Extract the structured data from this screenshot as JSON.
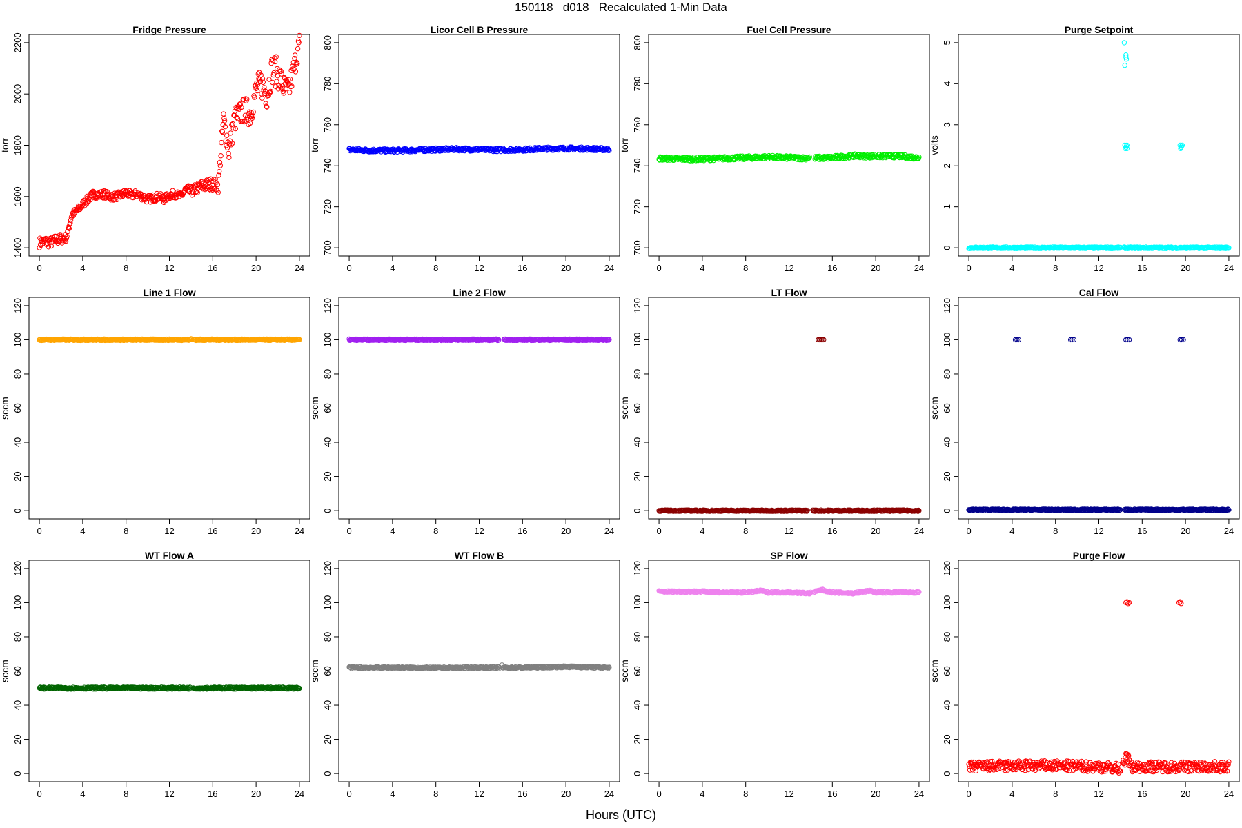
{
  "page": {
    "title": "150118   d018   Recalculated 1-Min Data",
    "xlabel": "Hours (UTC)"
  },
  "chart_data": [
    {
      "type": "scatter",
      "title": "Fridge Pressure",
      "ylabel": "torr",
      "xlim": [
        0,
        24
      ],
      "ylim": [
        1400,
        2200
      ],
      "yticks": [
        1400,
        1600,
        1800,
        2000,
        2200
      ],
      "xticks": [
        0,
        4,
        8,
        12,
        16,
        20,
        24
      ],
      "color": "#ff0000",
      "marker": "open-circle",
      "series": [
        {
          "x": [
            0,
            0.5,
            1,
            1.5,
            2,
            2.5,
            3,
            3.5,
            4,
            4.5,
            5,
            5.5,
            6,
            6.5,
            7,
            7.5,
            8,
            8.5,
            9,
            9.5,
            10,
            10.5,
            11,
            11.5,
            12,
            12.5,
            13,
            13.5,
            14,
            14.5,
            15,
            15.5,
            16,
            16.5,
            17,
            17.5,
            18,
            18.5,
            19,
            19.5,
            20,
            20.5,
            21,
            21.5,
            22,
            22.5,
            23,
            23.5,
            24
          ],
          "y": [
            1420,
            1425,
            1420,
            1430,
            1435,
            1440,
            1530,
            1545,
            1570,
            1590,
            1610,
            1605,
            1610,
            1600,
            1600,
            1605,
            1615,
            1605,
            1610,
            1600,
            1590,
            1595,
            1600,
            1590,
            1605,
            1610,
            1600,
            1625,
            1620,
            1630,
            1640,
            1645,
            1650,
            1640,
            1900,
            1780,
            1900,
            1920,
            1940,
            1920,
            2020,
            2040,
            2000,
            2100,
            2080,
            2030,
            2010,
            2100,
            2200
          ]
        }
      ],
      "scatter_band": [
        20,
        20,
        20,
        20,
        20,
        15,
        15,
        15,
        15,
        15,
        15,
        15,
        15,
        15,
        15,
        15,
        15,
        15,
        15,
        15,
        15,
        15,
        15,
        15,
        15,
        15,
        15,
        20,
        20,
        20,
        25,
        25,
        25,
        25,
        40,
        50,
        50,
        50,
        50,
        50,
        50,
        60,
        60,
        60,
        60,
        50,
        50,
        50,
        40
      ],
      "gap": [
        14.0,
        14.1
      ]
    },
    {
      "type": "scatter",
      "title": "Licor Cell B Pressure",
      "ylabel": "torr",
      "xlim": [
        0,
        24
      ],
      "ylim": [
        700,
        800
      ],
      "yticks": [
        700,
        720,
        740,
        760,
        780,
        800
      ],
      "xticks": [
        0,
        4,
        8,
        12,
        16,
        20,
        24
      ],
      "color": "#0000ff",
      "marker": "open-circle",
      "series": [
        {
          "x": [
            0,
            2,
            4,
            6,
            8,
            10,
            12,
            14,
            16,
            18,
            20,
            22,
            24
          ],
          "y": [
            747.8,
            747.5,
            747.4,
            747.6,
            747.9,
            748.1,
            747.9,
            747.7,
            747.9,
            748.3,
            748.4,
            748.3,
            748.0
          ]
        }
      ],
      "scatter_band": 0.8,
      "gap": [
        14.0,
        14.2
      ],
      "outliers": [
        [
          14.2,
          748.6
        ]
      ]
    },
    {
      "type": "scatter",
      "title": "Fuel Cell Pressure",
      "ylabel": "torr",
      "xlim": [
        0,
        24
      ],
      "ylim": [
        700,
        800
      ],
      "yticks": [
        700,
        720,
        740,
        760,
        780,
        800
      ],
      "xticks": [
        0,
        4,
        8,
        12,
        16,
        20,
        24
      ],
      "color": "#00ee00",
      "marker": "open-circle",
      "series": [
        {
          "x": [
            0,
            2,
            4,
            6,
            8,
            10,
            12,
            13.5,
            15,
            16,
            18,
            20,
            22,
            24
          ],
          "y": [
            743.6,
            743.3,
            743.3,
            743.6,
            743.9,
            744.2,
            743.9,
            743.7,
            743.8,
            744.0,
            744.8,
            744.6,
            744.7,
            743.9
          ]
        }
      ],
      "scatter_band": 0.9,
      "gap": [
        13.9,
        14.4
      ]
    },
    {
      "type": "scatter",
      "title": "Purge Setpoint",
      "ylabel": "volts",
      "xlim": [
        0,
        24
      ],
      "ylim": [
        0,
        5
      ],
      "yticks": [
        0,
        1,
        2,
        3,
        4,
        5
      ],
      "xticks": [
        0,
        4,
        8,
        12,
        16,
        20,
        24
      ],
      "color": "#00ffff",
      "marker": "open-circle",
      "series": [
        {
          "x": [
            0,
            4,
            8,
            12,
            16,
            20,
            24
          ],
          "y": [
            0,
            0,
            0,
            0,
            0,
            0,
            0
          ]
        }
      ],
      "scatter_band": 0.02,
      "gap": [
        14.0,
        14.3
      ],
      "outliers": [
        [
          14.35,
          5.0
        ],
        [
          14.5,
          4.7
        ],
        [
          14.55,
          4.6
        ],
        [
          14.4,
          4.45
        ],
        [
          14.5,
          4.65
        ],
        [
          14.4,
          2.5
        ],
        [
          14.5,
          2.45
        ],
        [
          14.6,
          2.5
        ],
        [
          14.45,
          2.42
        ],
        [
          14.55,
          2.48
        ],
        [
          14.6,
          2.42
        ],
        [
          19.5,
          2.5
        ],
        [
          19.6,
          2.45
        ],
        [
          19.7,
          2.5
        ],
        [
          19.55,
          2.42
        ],
        [
          19.65,
          2.48
        ]
      ]
    },
    {
      "type": "scatter",
      "title": "Line 1 Flow",
      "ylabel": "sccm",
      "xlim": [
        0,
        24
      ],
      "ylim": [
        0,
        120
      ],
      "yticks": [
        0,
        20,
        40,
        60,
        80,
        100,
        120
      ],
      "xticks": [
        0,
        4,
        8,
        12,
        16,
        20,
        24
      ],
      "color": "#ffa500",
      "marker": "open-circle",
      "series": [
        {
          "x": [
            0,
            4,
            8,
            12,
            16,
            20,
            24
          ],
          "y": [
            100,
            100,
            100,
            100,
            100,
            100,
            100
          ]
        }
      ],
      "scatter_band": 0.4,
      "gap": [
        13.9,
        14.2
      ],
      "outliers": [
        [
          14.0,
          100.6
        ]
      ]
    },
    {
      "type": "scatter",
      "title": "Line 2 Flow",
      "ylabel": "sccm",
      "xlim": [
        0,
        24
      ],
      "ylim": [
        0,
        120
      ],
      "yticks": [
        0,
        20,
        40,
        60,
        80,
        100,
        120
      ],
      "xticks": [
        0,
        4,
        8,
        12,
        16,
        20,
        24
      ],
      "color": "#a020f0",
      "marker": "open-circle",
      "series": [
        {
          "x": [
            0,
            4,
            8,
            12,
            16,
            20,
            24
          ],
          "y": [
            100,
            100,
            100,
            100,
            100,
            100,
            100
          ]
        }
      ],
      "scatter_band": 0.4,
      "gap": [
        13.8,
        14.3
      ]
    },
    {
      "type": "scatter",
      "title": "LT Flow",
      "ylabel": "sccm",
      "xlim": [
        0,
        24
      ],
      "ylim": [
        0,
        120
      ],
      "yticks": [
        0,
        20,
        40,
        60,
        80,
        100,
        120
      ],
      "xticks": [
        0,
        4,
        8,
        12,
        16,
        20,
        24
      ],
      "color": "#8b0000",
      "marker": "open-circle",
      "series": [
        {
          "x": [
            0,
            4,
            8,
            12,
            16,
            20,
            24
          ],
          "y": [
            0,
            0,
            0,
            0,
            0,
            0,
            0
          ]
        }
      ],
      "scatter_band": 0.4,
      "gap": [
        13.7,
        14.2
      ],
      "outliers": [
        [
          14.7,
          100
        ],
        [
          14.8,
          100
        ],
        [
          14.9,
          100
        ],
        [
          15.0,
          100
        ],
        [
          15.1,
          100
        ],
        [
          15.2,
          100
        ]
      ]
    },
    {
      "type": "scatter",
      "title": "Cal Flow",
      "ylabel": "sccm",
      "xlim": [
        0,
        24
      ],
      "ylim": [
        0,
        120
      ],
      "yticks": [
        0,
        20,
        40,
        60,
        80,
        100,
        120
      ],
      "xticks": [
        0,
        4,
        8,
        12,
        16,
        20,
        24
      ],
      "color": "#00008b",
      "marker": "open-circle",
      "series": [
        {
          "x": [
            0,
            4,
            8,
            12,
            16,
            20,
            24
          ],
          "y": [
            0.5,
            0.5,
            0.5,
            0.5,
            0.5,
            0.5,
            0.5
          ]
        }
      ],
      "scatter_band": 0.4,
      "gap": [
        14.0,
        14.4
      ],
      "outliers": [
        [
          4.3,
          100
        ],
        [
          4.45,
          100
        ],
        [
          4.6,
          100
        ],
        [
          9.4,
          100
        ],
        [
          9.55,
          100
        ],
        [
          9.7,
          100
        ],
        [
          14.5,
          100
        ],
        [
          14.65,
          100
        ],
        [
          14.8,
          100
        ],
        [
          19.5,
          100
        ],
        [
          19.65,
          100
        ],
        [
          19.8,
          100
        ]
      ]
    },
    {
      "type": "scatter",
      "title": "WT Flow A",
      "ylabel": "sccm",
      "xlim": [
        0,
        24
      ],
      "ylim": [
        0,
        120
      ],
      "yticks": [
        0,
        20,
        40,
        60,
        80,
        100,
        120
      ],
      "xticks": [
        0,
        4,
        8,
        12,
        16,
        20,
        24
      ],
      "color": "#006400",
      "marker": "open-circle",
      "series": [
        {
          "x": [
            0,
            4,
            8,
            12,
            16,
            20,
            24
          ],
          "y": [
            50,
            50,
            50,
            50,
            50,
            50,
            50
          ]
        }
      ],
      "scatter_band": 0.6,
      "gap": [
        13.9,
        14.2
      ]
    },
    {
      "type": "scatter",
      "title": "WT Flow B",
      "ylabel": "sccm",
      "xlim": [
        0,
        24
      ],
      "ylim": [
        0,
        120
      ],
      "yticks": [
        0,
        20,
        40,
        60,
        80,
        100,
        120
      ],
      "xticks": [
        0,
        4,
        8,
        12,
        16,
        20,
        24
      ],
      "color": "#808080",
      "marker": "open-circle",
      "series": [
        {
          "x": [
            0,
            4,
            8,
            12,
            16,
            20,
            24
          ],
          "y": [
            62,
            62,
            61.8,
            62,
            62,
            62.5,
            62
          ]
        }
      ],
      "scatter_band": 0.5,
      "gap": [
        13.9,
        14.2
      ],
      "outliers": [
        [
          14.1,
          63.5
        ]
      ]
    },
    {
      "type": "scatter",
      "title": "SP Flow",
      "ylabel": "sccm",
      "xlim": [
        0,
        24
      ],
      "ylim": [
        0,
        120
      ],
      "yticks": [
        0,
        20,
        40,
        60,
        80,
        100,
        120
      ],
      "xticks": [
        0,
        4,
        8,
        12,
        16,
        20,
        24
      ],
      "color": "#ee82ee",
      "marker": "open-circle",
      "series": [
        {
          "x": [
            0,
            2,
            4,
            6,
            8,
            9.5,
            10,
            12,
            13.9,
            14.5,
            15,
            16,
            18,
            19.5,
            20,
            22,
            24
          ],
          "y": [
            106.5,
            106.5,
            106.5,
            106,
            106,
            107,
            106,
            106,
            105.5,
            106.5,
            107.5,
            106,
            105.5,
            107,
            106,
            106,
            106
          ]
        }
      ],
      "scatter_band": 0.5,
      "gap": [
        14.0,
        14.3
      ]
    },
    {
      "type": "scatter",
      "title": "Purge Flow",
      "ylabel": "sccm",
      "xlim": [
        0,
        24
      ],
      "ylim": [
        0,
        120
      ],
      "yticks": [
        0,
        20,
        40,
        60,
        80,
        100,
        120
      ],
      "xticks": [
        0,
        4,
        8,
        12,
        16,
        20,
        24
      ],
      "color": "#ff0000",
      "marker": "open-circle",
      "series": [
        {
          "x": [
            0,
            4,
            8,
            12,
            14,
            14.6,
            15,
            16,
            20,
            24
          ],
          "y": [
            4,
            4.5,
            4.5,
            4,
            3,
            10,
            4,
            4,
            4,
            4
          ]
        }
      ],
      "scatter_band": 3,
      "gap": [
        14.0,
        14.2
      ],
      "outliers": [
        [
          14.5,
          100
        ],
        [
          14.6,
          100.5
        ],
        [
          14.7,
          99.5
        ],
        [
          14.8,
          100
        ],
        [
          19.4,
          100
        ],
        [
          19.5,
          100.5
        ],
        [
          19.6,
          99.5
        ],
        [
          14.7,
          11
        ],
        [
          14.8,
          8
        ]
      ]
    }
  ]
}
